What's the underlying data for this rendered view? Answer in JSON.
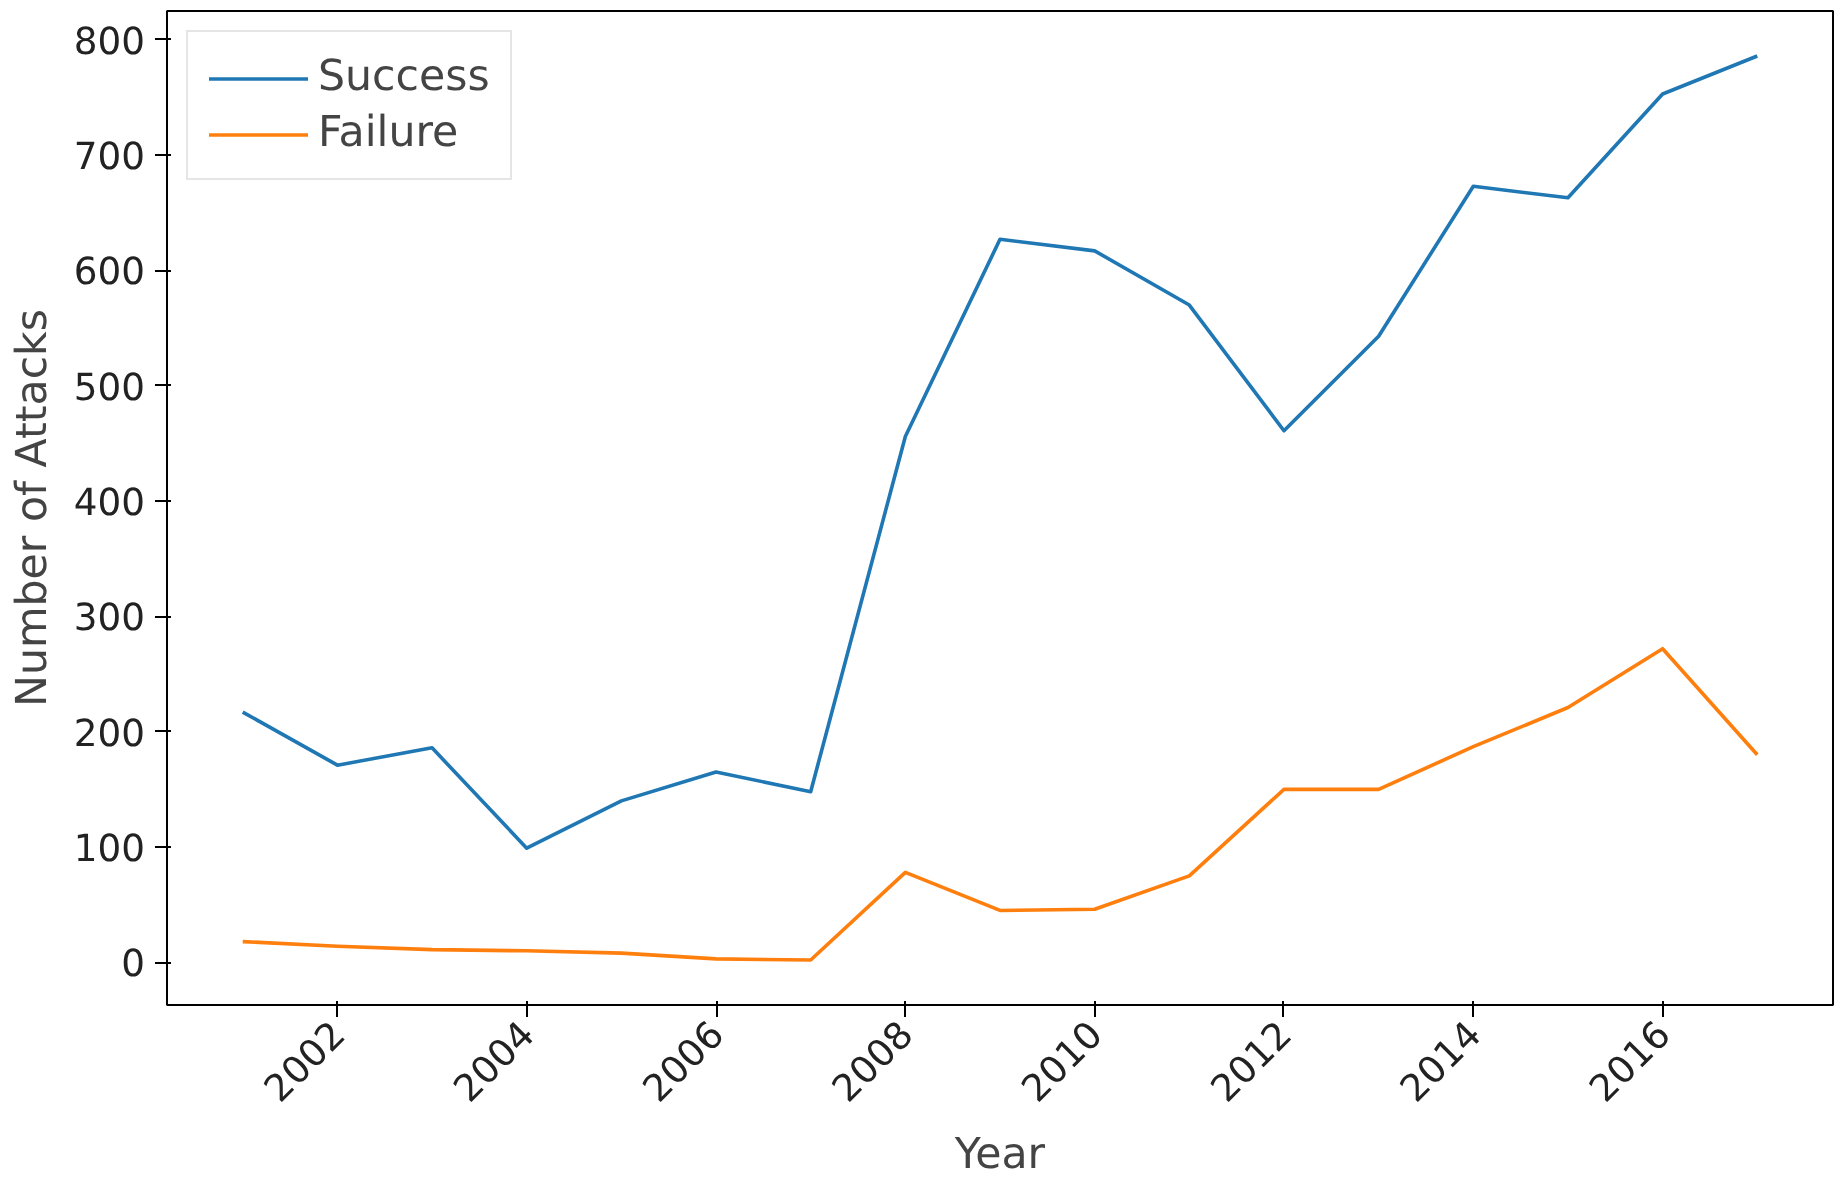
{
  "chart_data": {
    "type": "line",
    "xlabel": "Year",
    "ylabel": "Number of Attacks",
    "x": [
      2001,
      2002,
      2003,
      2004,
      2005,
      2006,
      2007,
      2008,
      2009,
      2010,
      2011,
      2012,
      2013,
      2014,
      2015,
      2016,
      2017
    ],
    "series": [
      {
        "name": "Success",
        "color": "#1f77b4",
        "values": [
          217,
          171,
          186,
          99,
          140,
          165,
          148,
          456,
          627,
          617,
          570,
          461,
          543,
          673,
          663,
          753,
          786
        ]
      },
      {
        "name": "Failure",
        "color": "#ff7f0e",
        "values": [
          18,
          14,
          11,
          10,
          8,
          3,
          2,
          78,
          45,
          46,
          75,
          150,
          150,
          187,
          221,
          272,
          180
        ]
      }
    ],
    "xlim": [
      2000.2,
      2017.8
    ],
    "ylim": [
      -37,
      825
    ],
    "xticks": [
      2002,
      2004,
      2006,
      2008,
      2010,
      2012,
      2014,
      2016
    ],
    "yticks": [
      0,
      100,
      200,
      300,
      400,
      500,
      600,
      700,
      800
    ],
    "legend": "top left",
    "grid": false,
    "marker": "none",
    "line_style": "solid"
  }
}
